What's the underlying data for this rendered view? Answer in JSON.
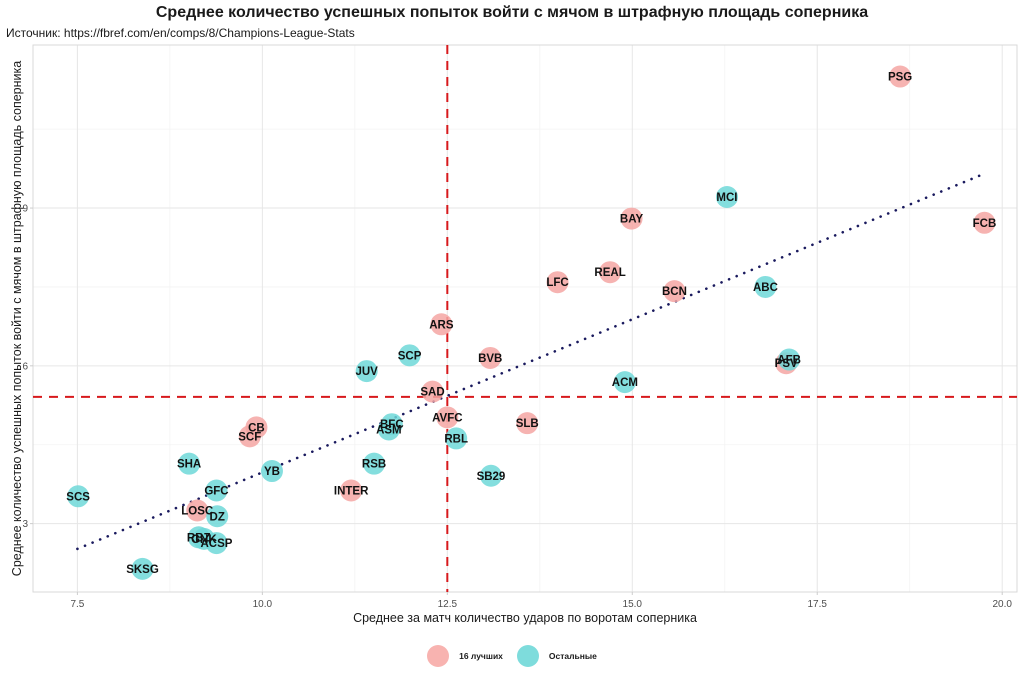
{
  "chart_data": {
    "type": "scatter",
    "title": "Среднее количество успешных попыток войти с мячом в штрафную площадь соперника",
    "subtitle": "Источник: https://fbref.com/en/comps/8/Champions-League-Stats",
    "xlabel": "Среднее за матч количество ударов по воротам соперника",
    "ylabel": "Среднее количество успешных попыток войти с мячом в штрафную площадь соперника",
    "xlim": [
      6.9,
      20.2
    ],
    "ylim": [
      1.7,
      12.1
    ],
    "x_ticks": [
      7.5,
      10.0,
      12.5,
      15.0,
      17.5,
      20.0
    ],
    "x_tick_labels": [
      "7.5",
      "10.0",
      "12.5",
      "15.0",
      "17.5",
      "20.0"
    ],
    "y_ticks": [
      3,
      6,
      9
    ],
    "y_tick_labels": [
      "3",
      "6",
      "9"
    ],
    "x_minor_ticks": [
      8.75,
      11.25,
      13.75,
      16.25,
      18.75
    ],
    "y_minor_ticks": [
      4.5,
      7.5,
      10.5
    ],
    "grid": true,
    "reference_lines": {
      "vertical_x": 12.5,
      "horizontal_y": 5.41,
      "color": "#d7191c",
      "style": "dashed"
    },
    "trend_line": {
      "start": [
        7.5,
        2.52
      ],
      "end": [
        19.77,
        9.66
      ],
      "color": "#1a1a5e",
      "style": "dotted"
    },
    "legend": {
      "position": "bottom",
      "entries": [
        {
          "label": "16 лучших",
          "color": "#f8b3b0"
        },
        {
          "label": "Остальные",
          "color": "#7edcdc"
        }
      ]
    },
    "series": [
      {
        "name": "16 лучших",
        "color": "#f4a6a3",
        "points": [
          {
            "label": "PSG",
            "x": 18.62,
            "y": 11.5
          },
          {
            "label": "BAY",
            "x": 14.99,
            "y": 8.8
          },
          {
            "label": "FCB",
            "x": 19.76,
            "y": 8.72
          },
          {
            "label": "REAL",
            "x": 14.7,
            "y": 7.78
          },
          {
            "label": "LFC",
            "x": 13.99,
            "y": 7.59
          },
          {
            "label": "BCN",
            "x": 15.57,
            "y": 7.42
          },
          {
            "label": "ARS",
            "x": 12.42,
            "y": 6.79
          },
          {
            "label": "BVB",
            "x": 13.08,
            "y": 6.15
          },
          {
            "label": "PSV",
            "x": 17.08,
            "y": 6.05
          },
          {
            "label": "SAD",
            "x": 12.3,
            "y": 5.51
          },
          {
            "label": "AVFC",
            "x": 12.5,
            "y": 5.02
          },
          {
            "label": "SLB",
            "x": 13.58,
            "y": 4.91
          },
          {
            "label": "CB",
            "x": 9.92,
            "y": 4.83
          },
          {
            "label": "SCF",
            "x": 9.83,
            "y": 4.66
          },
          {
            "label": "INTER",
            "x": 11.2,
            "y": 3.63
          },
          {
            "label": "LOSC",
            "x": 9.12,
            "y": 3.25
          }
        ]
      },
      {
        "name": "Остальные",
        "color": "#6fd8d8",
        "points": [
          {
            "label": "MCI",
            "x": 16.28,
            "y": 9.21
          },
          {
            "label": "ABC",
            "x": 16.8,
            "y": 7.5
          },
          {
            "label": "SCP",
            "x": 11.99,
            "y": 6.2
          },
          {
            "label": "AFB",
            "x": 17.12,
            "y": 6.12
          },
          {
            "label": "JUV",
            "x": 11.41,
            "y": 5.9
          },
          {
            "label": "ACM",
            "x": 14.9,
            "y": 5.69
          },
          {
            "label": "BFC",
            "x": 11.75,
            "y": 4.89
          },
          {
            "label": "ASM",
            "x": 11.71,
            "y": 4.79
          },
          {
            "label": "RBL",
            "x": 12.62,
            "y": 4.62
          },
          {
            "label": "SHA",
            "x": 9.01,
            "y": 4.14
          },
          {
            "label": "RSB",
            "x": 11.51,
            "y": 4.14
          },
          {
            "label": "YB",
            "x": 10.13,
            "y": 4.0
          },
          {
            "label": "SB29",
            "x": 13.09,
            "y": 3.91
          },
          {
            "label": "SCS",
            "x": 7.51,
            "y": 3.52
          },
          {
            "label": "GFC",
            "x": 9.38,
            "y": 3.63
          },
          {
            "label": "DZ",
            "x": 9.39,
            "y": 3.14
          },
          {
            "label": "RBZ",
            "x": 9.14,
            "y": 2.74
          },
          {
            "label": "GNK",
            "x": 9.21,
            "y": 2.71
          },
          {
            "label": "ACSP",
            "x": 9.38,
            "y": 2.63
          },
          {
            "label": "SKSG",
            "x": 8.38,
            "y": 2.14
          }
        ]
      }
    ]
  }
}
